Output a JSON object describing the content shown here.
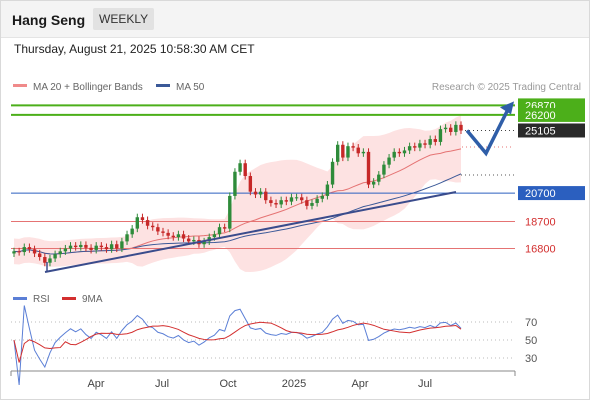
{
  "header": {
    "title": "Hang Seng",
    "period": "WEEKLY",
    "timestamp": "Thursday, August 21, 2025 10:58:30 AM CET"
  },
  "legend": {
    "bollinger": "MA 20 + Bollinger Bands",
    "ma50": "MA 50",
    "copyright": "Research © 2025 Trading Central"
  },
  "rsi_legend": {
    "rsi": "RSI",
    "ma": "9MA"
  },
  "colors": {
    "up": "#2e8b3a",
    "down": "#c62828",
    "bollinger": "#e57373",
    "ma50": "#3b5998",
    "support_line": "#3a4c8c",
    "green_level": "#4caf1a",
    "red_level": "#e57373",
    "blue_level": "#2b5fbf",
    "rsi": "#5b7fd6",
    "rsi_ma": "#d32f2f"
  },
  "chart_data": {
    "type": "candlestick",
    "title": "Hang Seng",
    "timeframe": "WEEKLY",
    "x_tick_labels": [
      "Apr",
      "Jul",
      "Oct",
      "2025",
      "Apr",
      "Jul"
    ],
    "levels": [
      {
        "value": 26870,
        "label": "26870",
        "style": "resistance",
        "color": "green"
      },
      {
        "value": 26200,
        "label": "26200",
        "style": "resistance",
        "color": "green"
      },
      {
        "value": 25105,
        "label": "25105",
        "style": "last price",
        "color": "black"
      },
      {
        "value": 20700,
        "label": "20700",
        "style": "pivot",
        "color": "blue"
      },
      {
        "value": 18700,
        "label": "18700",
        "style": "support",
        "color": "red"
      },
      {
        "value": 16800,
        "label": "16800",
        "style": "support",
        "color": "red"
      }
    ],
    "candles_close": [
      16600,
      16550,
      16900,
      16750,
      16450,
      16200,
      15800,
      16100,
      16400,
      16600,
      16800,
      17000,
      16900,
      17050,
      16850,
      16700,
      17000,
      16900,
      16750,
      17100,
      16800,
      17300,
      17800,
      18200,
      19000,
      18800,
      18400,
      18300,
      18000,
      17900,
      17700,
      17600,
      17800,
      17500,
      17300,
      17400,
      17100,
      17300,
      17600,
      17800,
      18300,
      18200,
      20500,
      22200,
      22800,
      21900,
      20800,
      20600,
      20800,
      20200,
      20000,
      19900,
      20200,
      20100,
      20400,
      20400,
      20200,
      19800,
      20000,
      20300,
      20500,
      21300,
      22900,
      24100,
      23200,
      24000,
      23900,
      23500,
      23600,
      21300,
      21500,
      22000,
      22700,
      23200,
      23600,
      23500,
      23700,
      24000,
      23900,
      24200,
      24100,
      24500,
      24300,
      25200,
      25300,
      25000,
      25500,
      25105
    ],
    "projection": {
      "points": [
        25105,
        23500,
        26870
      ],
      "direction": "up"
    },
    "indicators": {
      "bollinger_period": 20,
      "ma_period": 50,
      "rsi_levels": [
        70,
        50,
        30
      ],
      "rsi_last": 63,
      "rsi_ma_last": 62
    },
    "y_ticks_rsi": [
      "70",
      "50",
      "30"
    ],
    "grid": "dotted horizontal at RSI levels",
    "legend_position": "top-left"
  }
}
